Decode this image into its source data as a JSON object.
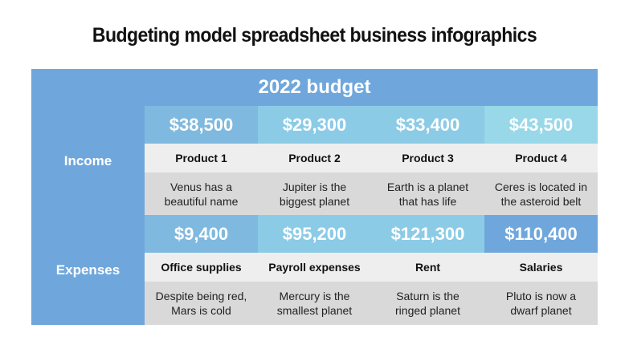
{
  "title": "Budgeting model spreadsheet business infographics",
  "table": {
    "header": "2022 budget",
    "income": {
      "label": "Income",
      "items": [
        {
          "amount": "$38,500",
          "name": "Product 1",
          "desc_line1": "Venus has a",
          "desc_line2": "beautiful name"
        },
        {
          "amount": "$29,300",
          "name": "Product 2",
          "desc_line1": "Jupiter is the",
          "desc_line2": "biggest planet"
        },
        {
          "amount": "$33,400",
          "name": "Product 3",
          "desc_line1": "Earth is a planet",
          "desc_line2": "that has life"
        },
        {
          "amount": "$43,500",
          "name": "Product 4",
          "desc_line1": "Ceres is located in",
          "desc_line2": "the asteroid belt"
        }
      ]
    },
    "expenses": {
      "label": "Expenses",
      "items": [
        {
          "amount": "$9,400",
          "name": "Office supplies",
          "desc_line1": "Despite being red,",
          "desc_line2": "Mars is cold"
        },
        {
          "amount": "$95,200",
          "name": "Payroll expenses",
          "desc_line1": "Mercury is the",
          "desc_line2": "smallest planet"
        },
        {
          "amount": "$121,300",
          "name": "Rent",
          "desc_line1": "Saturn is the",
          "desc_line2": "ringed planet"
        },
        {
          "amount": "$110,400",
          "name": "Salaries",
          "desc_line1": "Pluto is now a",
          "desc_line2": "dwarf planet"
        }
      ]
    }
  },
  "colors": {
    "header_blue": "#6fa7dc",
    "amount_blue_1": "#7fb9df",
    "amount_blue_2": "#8ccbe6",
    "amount_blue_3": "#98d8e8",
    "amount_blue_4": "#6fa7dc",
    "name_row_gray": "#eeeeee",
    "desc_row_gray": "#d9d9d9"
  }
}
